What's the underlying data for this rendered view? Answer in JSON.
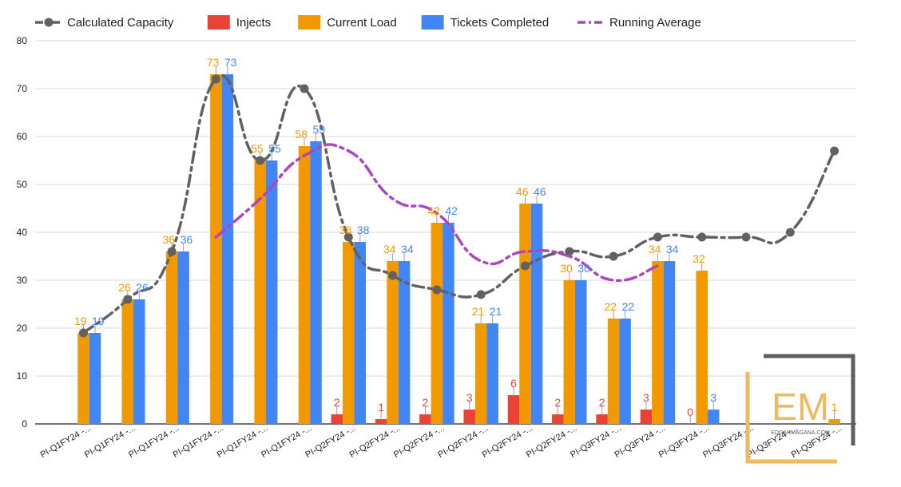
{
  "chart_data": {
    "type": "bar",
    "title": "",
    "xlabel": "",
    "ylabel": "",
    "ylim": [
      0,
      80
    ],
    "yticks": [
      0,
      10,
      20,
      30,
      40,
      50,
      60,
      70,
      80
    ],
    "grid": true,
    "legend_position": "top",
    "categories": [
      "PI-Q1FY24 -...",
      "PI-Q1FY24 -...",
      "PI-Q1FY24 -...",
      "PI-Q1FY24 -...",
      "PI-Q1FY24 -...",
      "PI-Q1FY24 -...",
      "PI-Q2FY24 -...",
      "PI-Q2FY24 -...",
      "PI-Q2FY24 -...",
      "PI-Q2FY24 -...",
      "PI-Q2FY24 -...",
      "PI-Q2FY24 -...",
      "PI-Q3FY24 -...",
      "PI-Q3FY24 -...",
      "PI-Q3FY24 -...",
      "PI-Q3FY24 -...",
      "PI-Q3FY24 -...",
      "PI-Q3FY24 -..."
    ],
    "series": [
      {
        "name": "Calculated Capacity",
        "kind": "line",
        "style": "dash-dot-markers",
        "color": "#616161",
        "values": [
          19,
          26,
          36,
          72,
          55,
          70,
          39,
          31,
          28,
          27,
          33,
          36,
          35,
          39,
          39,
          39,
          40,
          57
        ]
      },
      {
        "name": "Injects",
        "kind": "bar",
        "color": "#ea4335",
        "values": [
          null,
          null,
          null,
          null,
          null,
          null,
          2,
          1,
          2,
          3,
          6,
          2,
          2,
          3,
          0,
          null,
          null,
          null
        ]
      },
      {
        "name": "Current Load",
        "kind": "bar",
        "color": "#f29900",
        "values": [
          19,
          26,
          36,
          73,
          55,
          58,
          38,
          34,
          42,
          21,
          46,
          30,
          22,
          34,
          32,
          null,
          null,
          1
        ]
      },
      {
        "name": "Tickets Completed",
        "kind": "bar",
        "color": "#4285f4",
        "values": [
          19,
          26,
          36,
          73,
          55,
          59,
          38,
          34,
          42,
          21,
          46,
          30,
          22,
          34,
          3,
          null,
          null,
          null
        ]
      },
      {
        "name": "Running Average",
        "kind": "line",
        "style": "dash-dot",
        "color": "#ab47bc",
        "values": [
          null,
          null,
          null,
          39,
          47,
          56,
          57,
          47,
          44,
          34,
          36,
          35,
          30,
          33,
          null,
          null,
          null,
          null
        ]
      }
    ]
  },
  "watermark": {
    "letters": "EM",
    "site": "EDGARMAGANA.COM",
    "colors": {
      "gold": "#f0b960",
      "gray": "#5f5f5f"
    }
  },
  "colors": {
    "grid": "#d9d9d9",
    "axis": "#222222",
    "error_bar": "#9e9e9e"
  }
}
